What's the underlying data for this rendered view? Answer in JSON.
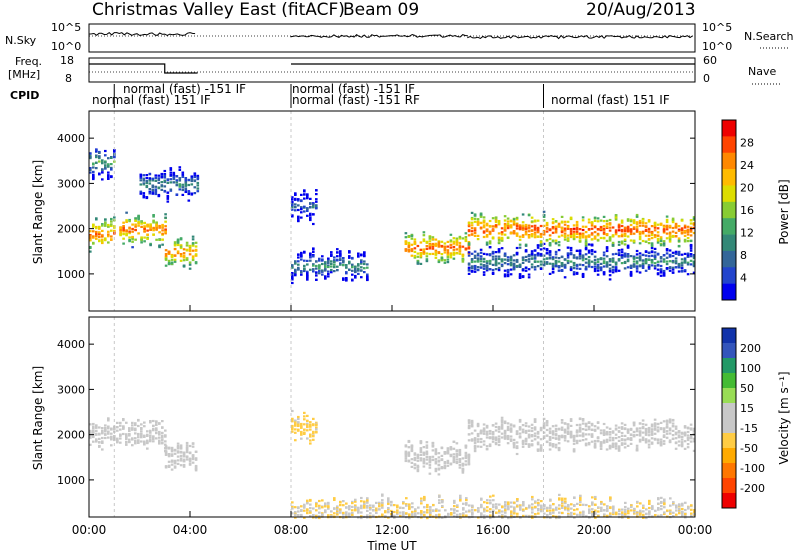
{
  "header": {
    "title": "Christmas Valley East (fitACF)",
    "beam": "Beam 09",
    "date": "20/Aug/2013"
  },
  "nsky_panel": {
    "left_label": "N.Sky",
    "left_ticks": [
      "10^5",
      "10^0"
    ],
    "right_ticks": [
      "10^5",
      "10^0"
    ],
    "right_label": "N.Search"
  },
  "freq_panel": {
    "left_label_line1": "Freq.",
    "left_label_line2": "[MHz]",
    "left_ticks": [
      "18",
      "8"
    ],
    "right_ticks": [
      "60",
      "0"
    ],
    "right_label": "Nave"
  },
  "cpid": {
    "label": "CPID",
    "segments": [
      {
        "text": "normal (fast) 151 IF"
      },
      {
        "text": "normal (fast) -151 IF"
      },
      {
        "text": "normal (fast) -151 IF"
      },
      {
        "text": "normal (fast) -151 RF"
      },
      {
        "text": "normal (fast) 151 IF"
      }
    ]
  },
  "axes": {
    "ylabel": "Slant Range [km]",
    "xlabel": "Time UT",
    "x_ticks": [
      "00:00",
      "04:00",
      "08:00",
      "12:00",
      "16:00",
      "20:00",
      "00:00"
    ],
    "y_ticks": [
      "4000",
      "3000",
      "2000",
      "1000"
    ]
  },
  "colorbars": {
    "power": {
      "label": "Power [dB]",
      "ticks": [
        "28",
        "24",
        "20",
        "16",
        "12",
        "8",
        "4"
      ],
      "colors": [
        "#ee0000",
        "#ff4400",
        "#ff8800",
        "#ffbb00",
        "#dddd00",
        "#88cc33",
        "#44aa66",
        "#338877",
        "#336699",
        "#2244cc",
        "#0000ee"
      ]
    },
    "velocity": {
      "label": "Velocity [m s⁻¹]",
      "ticks": [
        "200",
        "100",
        "50",
        "15",
        "-15",
        "-50",
        "-100",
        "-200"
      ],
      "colors": [
        "#1133aa",
        "#3355bb",
        "#229966",
        "#44bb33",
        "#99dd55",
        "#c8c8c8",
        "#c8c8c8",
        "#ffcc44",
        "#ffaa00",
        "#ff7700",
        "#ff4400",
        "#ee0000"
      ]
    }
  },
  "chart_data": {
    "type": "heatmap",
    "x_hours": [
      0,
      24
    ],
    "ylim": [
      180,
      4600
    ],
    "power_echo_bands": [
      {
        "t0": 0.0,
        "t1": 1.0,
        "range_km": 1900,
        "power_db": 26
      },
      {
        "t0": 1.2,
        "t1": 3.0,
        "range_km": 2000,
        "power_db": 25
      },
      {
        "t0": 3.0,
        "t1": 4.3,
        "range_km": 1500,
        "power_db": 24
      },
      {
        "t0": 0.0,
        "t1": 1.0,
        "range_km": 3500,
        "power_db": 12
      },
      {
        "t0": 2.0,
        "t1": 4.3,
        "range_km": 3000,
        "power_db": 10
      },
      {
        "t0": 8.0,
        "t1": 9.0,
        "range_km": 2500,
        "power_db": 6
      },
      {
        "t0": 8.0,
        "t1": 11.0,
        "range_km": 1200,
        "power_db": 10
      },
      {
        "t0": 12.5,
        "t1": 15.0,
        "range_km": 1600,
        "power_db": 26
      },
      {
        "t0": 15.0,
        "t1": 24.0,
        "range_km": 2000,
        "power_db": 27
      },
      {
        "t0": 15.0,
        "t1": 24.0,
        "range_km": 1300,
        "power_db": 10
      }
    ],
    "velocity_echo_bands": [
      {
        "t0": 0.0,
        "t1": 3.0,
        "range_km": 2000,
        "velocity": 0
      },
      {
        "t0": 3.0,
        "t1": 4.3,
        "range_km": 1500,
        "velocity": 0
      },
      {
        "t0": 8.0,
        "t1": 9.0,
        "range_km": 2200,
        "velocity": -60
      },
      {
        "t0": 8.0,
        "t1": 24.0,
        "range_km": 300,
        "velocity": -40
      },
      {
        "t0": 15.0,
        "t1": 24.0,
        "range_km": 2000,
        "velocity": 0
      },
      {
        "t0": 12.5,
        "t1": 15.0,
        "range_km": 1500,
        "velocity": -20
      }
    ],
    "data_gaps_hours": [
      [
        4.3,
        8.0
      ]
    ]
  }
}
